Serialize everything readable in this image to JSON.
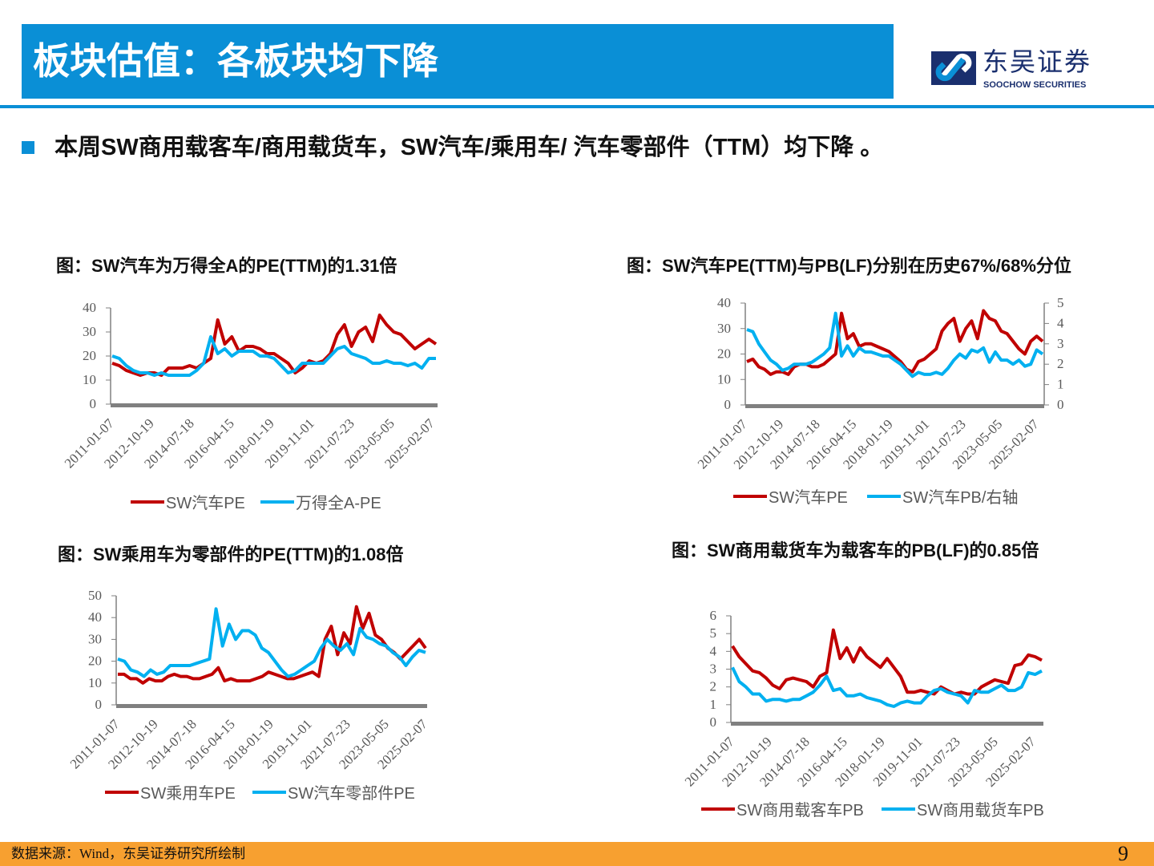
{
  "header": {
    "title": "板块估值：各板块均下降"
  },
  "logo": {
    "cn": "东吴证券",
    "en": "SOOCHOW SECURITIES"
  },
  "bullet": "本周SW商用载客车/商用载货车，SW汽车/乘用车/ 汽车零部件（TTM）均下降 。",
  "footer": {
    "source": "数据来源：Wind，东吴证券研究所绘制",
    "page": "9"
  },
  "colors": {
    "accent": "#0a8fd6",
    "red": "#c00000",
    "blue": "#00b0f0",
    "footer": "#f7a030"
  },
  "chart_data": [
    {
      "type": "line",
      "title": "图：SW汽车为万得全A的PE(TTM)的1.31倍",
      "x_ticks": [
        "2011-01-07",
        "2012-10-19",
        "2014-07-18",
        "2016-04-15",
        "2018-01-19",
        "2019-11-01",
        "2021-07-23",
        "2023-05-05",
        "2025-02-07"
      ],
      "ylim": [
        0,
        40
      ],
      "y_ticks": [
        0,
        10,
        20,
        30,
        40
      ],
      "legend": "bottom",
      "series": [
        {
          "name": "SW汽车PE",
          "color": "#c00000",
          "values": [
            17,
            16,
            14,
            13,
            12,
            13,
            13,
            12,
            15,
            15,
            15,
            16,
            15,
            17,
            19,
            35,
            25,
            28,
            22,
            24,
            24,
            23,
            21,
            21,
            19,
            17,
            13,
            15,
            18,
            17,
            18,
            21,
            29,
            33,
            24,
            30,
            32,
            26,
            37,
            33,
            30,
            29,
            26,
            23,
            25,
            27,
            25
          ]
        },
        {
          "name": "万得全A-PE",
          "color": "#00b0f0",
          "values": [
            20,
            19,
            16,
            14,
            13,
            13,
            12,
            13,
            12,
            12,
            12,
            12,
            14,
            17,
            28,
            21,
            23,
            20,
            22,
            22,
            22,
            20,
            20,
            19,
            16,
            13,
            14,
            17,
            17,
            17,
            17,
            20,
            23,
            24,
            21,
            20,
            19,
            17,
            17,
            18,
            17,
            17,
            16,
            17,
            15,
            19,
            19
          ]
        }
      ]
    },
    {
      "type": "line",
      "title": "图：SW汽车PE(TTM)与PB(LF)分别在历史67%/68%分位",
      "x_ticks": [
        "2011-01-07",
        "2012-10-19",
        "2014-07-18",
        "2016-04-15",
        "2018-01-19",
        "2019-11-01",
        "2021-07-23",
        "2023-05-05",
        "2025-02-07"
      ],
      "ylim": [
        0,
        40
      ],
      "y_ticks": [
        0,
        10,
        20,
        30,
        40
      ],
      "y2lim": [
        0,
        5
      ],
      "y2_ticks": [
        0,
        1,
        2,
        3,
        4,
        5
      ],
      "legend": "bottom",
      "series": [
        {
          "name": "SW汽车PE",
          "color": "#c00000",
          "axis": "left",
          "values": [
            17,
            18,
            15,
            14,
            12,
            13,
            13,
            12,
            15,
            16,
            16,
            15,
            15,
            16,
            18,
            20,
            36,
            26,
            28,
            23,
            24,
            24,
            23,
            22,
            21,
            19,
            17,
            14,
            13,
            17,
            18,
            20,
            22,
            29,
            32,
            34,
            25,
            30,
            33,
            26,
            37,
            34,
            33,
            29,
            28,
            25,
            22,
            20,
            25,
            27,
            25
          ]
        },
        {
          "name": "SW汽车PB/右轴",
          "color": "#00b0f0",
          "axis": "right",
          "values": [
            3.7,
            3.6,
            3.0,
            2.6,
            2.2,
            2.0,
            1.7,
            1.8,
            2.0,
            2.0,
            2.0,
            2.1,
            2.3,
            2.5,
            2.8,
            4.5,
            2.4,
            2.9,
            2.4,
            2.8,
            2.6,
            2.6,
            2.5,
            2.4,
            2.4,
            2.2,
            2.0,
            1.7,
            1.4,
            1.6,
            1.5,
            1.5,
            1.6,
            1.5,
            1.8,
            2.2,
            2.5,
            2.3,
            2.7,
            2.6,
            2.8,
            2.1,
            2.6,
            2.2,
            2.2,
            2.0,
            2.2,
            1.9,
            2.0,
            2.7,
            2.5
          ]
        }
      ]
    },
    {
      "type": "line",
      "title": "图：SW乘用车为零部件的PE(TTM)的1.08倍",
      "x_ticks": [
        "2011-01-07",
        "2012-10-19",
        "2014-07-18",
        "2016-04-15",
        "2018-01-19",
        "2019-11-01",
        "2021-07-23",
        "2023-05-05",
        "2025-02-07"
      ],
      "ylim": [
        0,
        50
      ],
      "y_ticks": [
        0,
        10,
        20,
        30,
        40,
        50
      ],
      "legend": "bottom",
      "series": [
        {
          "name": "SW乘用车PE",
          "color": "#c00000",
          "values": [
            14,
            14,
            12,
            12,
            10,
            12,
            11,
            11,
            13,
            14,
            13,
            13,
            12,
            12,
            13,
            14,
            17,
            11,
            12,
            11,
            11,
            11,
            12,
            13,
            15,
            14,
            13,
            12,
            12,
            13,
            14,
            15,
            13,
            30,
            36,
            23,
            33,
            28,
            45,
            35,
            42,
            32,
            30,
            26,
            24,
            21,
            24,
            27,
            30,
            26
          ]
        },
        {
          "name": "SW汽车零部件PE",
          "color": "#00b0f0",
          "values": [
            21,
            20,
            16,
            15,
            13,
            16,
            14,
            15,
            18,
            18,
            18,
            18,
            19,
            20,
            21,
            44,
            27,
            37,
            30,
            34,
            34,
            32,
            26,
            24,
            20,
            16,
            13,
            14,
            16,
            18,
            20,
            26,
            30,
            27,
            25,
            28,
            23,
            35,
            31,
            30,
            28,
            27,
            24,
            22,
            18,
            22,
            25,
            24
          ]
        }
      ]
    },
    {
      "type": "line",
      "title": "图：SW商用载货车为载客车的PB(LF)的0.85倍",
      "x_ticks": [
        "2011-01-07",
        "2012-10-19",
        "2014-07-18",
        "2016-04-15",
        "2018-01-19",
        "2019-11-01",
        "2021-07-23",
        "2023-05-05",
        "2025-02-07"
      ],
      "ylim": [
        0,
        6
      ],
      "y_ticks": [
        0,
        1,
        2,
        3,
        4,
        5,
        6
      ],
      "legend": "bottom",
      "series": [
        {
          "name": "SW商用载客车PB",
          "color": "#c00000",
          "values": [
            4.3,
            3.7,
            3.3,
            2.9,
            2.8,
            2.5,
            2.1,
            1.9,
            2.4,
            2.5,
            2.4,
            2.3,
            2.0,
            2.6,
            2.8,
            5.2,
            3.6,
            4.2,
            3.4,
            4.2,
            3.7,
            3.4,
            3.1,
            3.6,
            3.1,
            2.6,
            1.7,
            1.7,
            1.8,
            1.7,
            1.6,
            2.0,
            1.8,
            1.6,
            1.7,
            1.6,
            1.6,
            2.0,
            2.2,
            2.4,
            2.3,
            2.2,
            3.2,
            3.3,
            3.8,
            3.7,
            3.5
          ]
        },
        {
          "name": "SW商用载货车PB",
          "color": "#00b0f0",
          "values": [
            3.1,
            2.3,
            2.0,
            1.6,
            1.6,
            1.2,
            1.3,
            1.3,
            1.2,
            1.3,
            1.3,
            1.5,
            1.7,
            2.1,
            2.6,
            1.8,
            1.9,
            1.5,
            1.5,
            1.6,
            1.4,
            1.3,
            1.2,
            1.0,
            0.9,
            1.1,
            1.2,
            1.1,
            1.1,
            1.5,
            1.8,
            1.9,
            1.7,
            1.6,
            1.5,
            1.1,
            1.8,
            1.7,
            1.7,
            1.9,
            2.1,
            1.8,
            1.8,
            2.0,
            2.8,
            2.7,
            2.9
          ]
        }
      ]
    }
  ]
}
